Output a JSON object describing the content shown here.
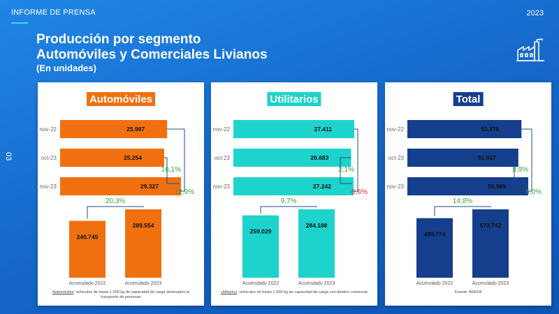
{
  "header": {
    "label": "INFORME DE PRENSA",
    "year": "2023",
    "page": "03"
  },
  "title_line1": "Producción por segmento",
  "title_line2": "Automóviles y Comerciales Livianos",
  "subtitle": "(En unidades)",
  "icons": {
    "factory": "factory-icon"
  },
  "colors": {
    "automoviles": "#f07010",
    "utilitarios": "#1dd3cc",
    "total": "#153f8c",
    "positive": "#3aa33a",
    "negative": "#e02a2a"
  },
  "chart_data": [
    {
      "type": "bar",
      "title": "Automóviles",
      "color": "#f07010",
      "monthly": {
        "categories": [
          "nov-22",
          "oct-23",
          "nov-23"
        ],
        "values": [
          25967,
          25254,
          29327
        ],
        "labels": [
          "25.967",
          "25.254",
          "29.327"
        ]
      },
      "changes": {
        "mom": "16,1%",
        "yoy": "12,9%",
        "ytd": "20,3%"
      },
      "accumulated": {
        "categories": [
          "Acumulado 2022",
          "Acumulado 2023"
        ],
        "values": [
          240745,
          289554
        ],
        "labels": [
          "240.745",
          "289.554"
        ]
      },
      "footnote_term": "Automóviles",
      "footnote_text": ": vehículos de hasta 1.500 kg de capacidad de carga destinados al transporte de personas"
    },
    {
      "type": "bar",
      "title": "Utilitarios",
      "color": "#1dd3cc",
      "monthly": {
        "categories": [
          "nov-22",
          "oct-23",
          "nov-23"
        ],
        "values": [
          27411,
          26683,
          27242
        ],
        "labels": [
          "27.411",
          "26.683",
          "27.242"
        ]
      },
      "changes": {
        "mom": "2,1%",
        "yoy": "-0,6%",
        "ytd": "9,7%"
      },
      "accumulated": {
        "categories": [
          "Acumulado 2022",
          "Acumulado 2023"
        ],
        "values": [
          259029,
          284188
        ],
        "labels": [
          "259.029",
          "284.188"
        ]
      },
      "footnote_term": "Utilitarios",
      "footnote_text": ": vehículos de hasta 1.500 kg de capacidad de carga con destino comercial"
    },
    {
      "type": "bar",
      "title": "Total",
      "color": "#153f8c",
      "monthly": {
        "categories": [
          "nov-22",
          "oct-23",
          "nov-23"
        ],
        "values": [
          53378,
          51937,
          56569
        ],
        "labels": [
          "53.378",
          "51.937",
          "56.569"
        ]
      },
      "changes": {
        "mom": "8,9%",
        "yoy": "6,0%",
        "ytd": "14,8%"
      },
      "accumulated": {
        "categories": [
          "Acumulado 2022",
          "Acumulado 2023"
        ],
        "values": [
          499774,
          573742
        ],
        "labels": [
          "499.774",
          "573.742"
        ]
      },
      "footnote_term": "",
      "footnote_text": "Fuente: ADEFA"
    }
  ]
}
